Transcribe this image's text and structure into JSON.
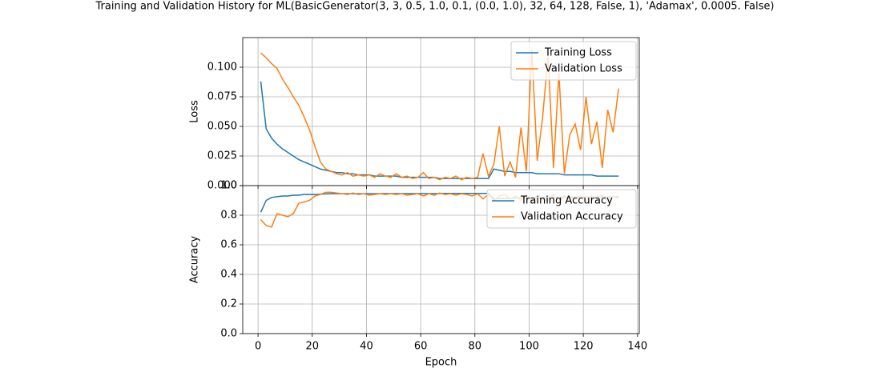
{
  "chart_data": [
    {
      "type": "line",
      "title": "Training and Validation History for ML(BasicGenerator(3, 3, 0.5, 1.0, 0.1, (0.0, 1.0), 32, 64, 128, False, 1), 'Adamax', 0.0005. False)",
      "ylabel": "Loss",
      "grid": true,
      "legend": "upper right",
      "x": [
        1,
        3,
        5,
        7,
        9,
        11,
        13,
        15,
        17,
        19,
        21,
        23,
        25,
        27,
        29,
        31,
        33,
        35,
        37,
        39,
        41,
        43,
        45,
        47,
        49,
        51,
        53,
        55,
        57,
        59,
        61,
        63,
        65,
        67,
        69,
        71,
        73,
        75,
        77,
        79,
        81,
        83,
        85,
        87,
        89,
        91,
        93,
        95,
        97,
        99,
        101,
        103,
        105,
        107,
        109,
        111,
        113,
        115,
        117,
        119,
        121,
        123,
        125,
        127,
        129,
        131,
        133
      ],
      "xlim": [
        -5.65,
        140.65
      ],
      "xticks": [
        0,
        20,
        40,
        60,
        80,
        100,
        120,
        140
      ],
      "ylim": [
        0,
        0.125
      ],
      "yticks": [
        {
          "value": 0,
          "label": "0.000"
        },
        {
          "value": 0.025,
          "label": "0.025"
        },
        {
          "value": 0.05,
          "label": "0.050"
        },
        {
          "value": 0.075,
          "label": "0.075"
        },
        {
          "value": 0.1,
          "label": "0.100"
        }
      ],
      "series": [
        {
          "name": "Training Loss",
          "color": "#1f77b4",
          "values": [
            0.088,
            0.048,
            0.04,
            0.035,
            0.031,
            0.028,
            0.025,
            0.022,
            0.02,
            0.018,
            0.016,
            0.014,
            0.013,
            0.012,
            0.011,
            0.011,
            0.01,
            0.01,
            0.009,
            0.009,
            0.009,
            0.008,
            0.008,
            0.008,
            0.008,
            0.008,
            0.007,
            0.007,
            0.007,
            0.007,
            0.007,
            0.007,
            0.007,
            0.006,
            0.006,
            0.006,
            0.006,
            0.006,
            0.006,
            0.006,
            0.006,
            0.006,
            0.006,
            0.014,
            0.013,
            0.012,
            0.012,
            0.011,
            0.011,
            0.011,
            0.011,
            0.01,
            0.01,
            0.01,
            0.01,
            0.01,
            0.009,
            0.009,
            0.009,
            0.009,
            0.009,
            0.009,
            0.008,
            0.008,
            0.008,
            0.008,
            0.008
          ]
        },
        {
          "name": "Validation Loss",
          "color": "#ff7f0e",
          "values": [
            0.112,
            0.108,
            0.103,
            0.099,
            0.09,
            0.083,
            0.075,
            0.068,
            0.058,
            0.047,
            0.033,
            0.02,
            0.014,
            0.012,
            0.01,
            0.009,
            0.011,
            0.008,
            0.009,
            0.008,
            0.009,
            0.007,
            0.01,
            0.008,
            0.007,
            0.01,
            0.007,
            0.008,
            0.006,
            0.007,
            0.011,
            0.006,
            0.007,
            0.005,
            0.007,
            0.006,
            0.008,
            0.005,
            0.007,
            0.006,
            0.007,
            0.027,
            0.008,
            0.018,
            0.05,
            0.008,
            0.02,
            0.007,
            0.049,
            0.012,
            0.115,
            0.021,
            0.058,
            0.11,
            0.015,
            0.095,
            0.01,
            0.043,
            0.052,
            0.03,
            0.075,
            0.035,
            0.054,
            0.015,
            0.064,
            0.045,
            0.082
          ]
        }
      ]
    },
    {
      "type": "line",
      "xlabel": "Epoch",
      "ylabel": "Accuracy",
      "grid": true,
      "legend": "upper right",
      "x": [
        1,
        3,
        5,
        7,
        9,
        11,
        13,
        15,
        17,
        19,
        21,
        23,
        25,
        27,
        29,
        31,
        33,
        35,
        37,
        39,
        41,
        43,
        45,
        47,
        49,
        51,
        53,
        55,
        57,
        59,
        61,
        63,
        65,
        67,
        69,
        71,
        73,
        75,
        77,
        79,
        81,
        83,
        85,
        87,
        89,
        91,
        93,
        95,
        97,
        99,
        101,
        103,
        105,
        107,
        109,
        111,
        113,
        115,
        117,
        119,
        121,
        123,
        125,
        127,
        129,
        131,
        133
      ],
      "xlim": [
        -5.65,
        140.65
      ],
      "xticks": [
        0,
        20,
        40,
        60,
        80,
        100,
        120,
        140
      ],
      "ylim": [
        0,
        1.0
      ],
      "yticks": [
        {
          "value": 0,
          "label": "0.0"
        },
        {
          "value": 0.2,
          "label": "0.2"
        },
        {
          "value": 0.4,
          "label": "0.4"
        },
        {
          "value": 0.6,
          "label": "0.6"
        },
        {
          "value": 0.8,
          "label": "0.8"
        },
        {
          "value": 1.0,
          "label": "1.0"
        }
      ],
      "series": [
        {
          "name": "Training Accuracy",
          "color": "#1f77b4",
          "values": [
            0.82,
            0.9,
            0.92,
            0.925,
            0.93,
            0.93,
            0.935,
            0.935,
            0.94,
            0.94,
            0.94,
            0.942,
            0.944,
            0.945,
            0.945,
            0.945,
            0.945,
            0.945,
            0.945,
            0.945,
            0.945,
            0.945,
            0.945,
            0.946,
            0.946,
            0.946,
            0.946,
            0.946,
            0.946,
            0.946,
            0.946,
            0.946,
            0.946,
            0.946,
            0.947,
            0.947,
            0.947,
            0.947,
            0.947,
            0.947,
            0.947,
            0.947,
            0.947,
            0.91,
            0.912,
            0.914,
            0.915,
            0.916,
            0.917,
            0.918,
            0.918,
            0.919,
            0.92,
            0.92,
            0.92,
            0.921,
            0.921,
            0.922,
            0.922,
            0.922,
            0.923,
            0.923,
            0.923,
            0.924,
            0.924,
            0.924,
            0.925
          ]
        },
        {
          "name": "Validation Accuracy",
          "color": "#ff7f0e",
          "values": [
            0.77,
            0.73,
            0.72,
            0.81,
            0.8,
            0.79,
            0.81,
            0.88,
            0.89,
            0.9,
            0.93,
            0.94,
            0.955,
            0.955,
            0.95,
            0.945,
            0.94,
            0.95,
            0.94,
            0.945,
            0.935,
            0.94,
            0.945,
            0.94,
            0.945,
            0.94,
            0.945,
            0.935,
            0.94,
            0.945,
            0.93,
            0.945,
            0.935,
            0.95,
            0.94,
            0.945,
            0.935,
            0.945,
            0.94,
            0.93,
            0.945,
            0.91,
            0.94,
            0.9,
            0.93,
            0.94,
            0.91,
            0.93,
            0.9,
            0.94,
            0.89,
            0.93,
            0.91,
            0.9,
            0.94,
            0.89,
            0.93,
            0.91,
            0.92,
            0.93,
            0.9,
            0.93,
            0.91,
            0.94,
            0.9,
            0.93,
            0.91
          ]
        }
      ]
    }
  ]
}
